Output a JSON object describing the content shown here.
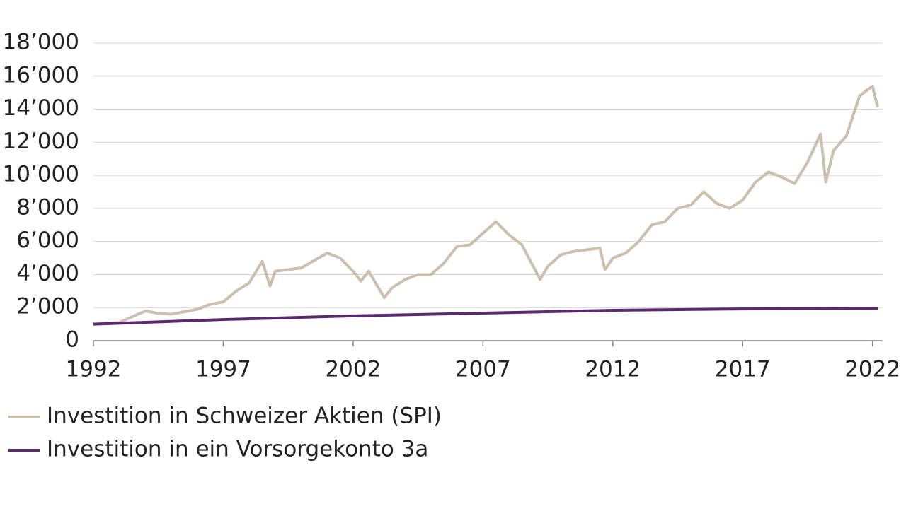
{
  "chart_data": {
    "type": "line",
    "xlim": [
      1992,
      2022.2
    ],
    "xticks": [
      1992,
      1997,
      2002,
      2007,
      2012,
      2017,
      2022
    ],
    "ylim": [
      0,
      18000
    ],
    "yticks": [
      0,
      {
        "value": 2000,
        "label": "2’000"
      },
      {
        "value": 4000,
        "label": "4’000"
      },
      {
        "value": 6000,
        "label": "6’000"
      },
      {
        "value": 8000,
        "label": "8’000"
      },
      {
        "value": 10000,
        "label": "10’000"
      },
      {
        "value": 12000,
        "label": "12’000"
      },
      {
        "value": 14000,
        "label": "14’000"
      },
      {
        "value": 16000,
        "label": "16’000"
      },
      {
        "value": 18000,
        "label": "18’000"
      }
    ],
    "grid": true,
    "legend": "bottom-left",
    "series": [
      {
        "name": "Investition in Schweizer Aktien (SPI)",
        "color": "#cdbfae",
        "x": [
          1992,
          1993,
          1994,
          1994.5,
          1995,
          1996,
          1996.5,
          1997,
          1997.5,
          1998,
          1998.5,
          1998.8,
          1999,
          2000,
          2001,
          2001.5,
          2002,
          2002.3,
          2002.6,
          2003.2,
          2003.5,
          2004,
          2004.5,
          2005,
          2005.5,
          2006,
          2006.5,
          2007.5,
          2008,
          2008.5,
          2009.2,
          2009.5,
          2010,
          2010.5,
          2011,
          2011.5,
          2011.7,
          2012,
          2012.5,
          2013,
          2013.5,
          2014,
          2014.5,
          2015,
          2015.5,
          2016,
          2016.5,
          2017,
          2017.5,
          2018,
          2018.5,
          2019,
          2019.5,
          2020,
          2020.2,
          2020.5,
          2021,
          2021.5,
          2022,
          2022.2
        ],
        "values": [
          1000,
          1100,
          1800,
          1650,
          1600,
          1900,
          2200,
          2350,
          3000,
          3500,
          4800,
          3300,
          4200,
          4400,
          5300,
          5000,
          4200,
          3600,
          4200,
          2600,
          3200,
          3700,
          4000,
          4000,
          4700,
          5700,
          5800,
          7200,
          6400,
          5800,
          3700,
          4500,
          5200,
          5400,
          5500,
          5600,
          4300,
          5000,
          5300,
          6000,
          7000,
          7200,
          8000,
          8200,
          9000,
          8300,
          8000,
          8500,
          9600,
          10200,
          9900,
          9500,
          10800,
          12500,
          9600,
          11500,
          12400,
          14800,
          15400,
          14100
        ]
      },
      {
        "name": "Investition in ein Vorsorgekonto 3a",
        "color": "#5b2a6e",
        "x": [
          1992,
          1997,
          2002,
          2007,
          2012,
          2017,
          2022.2
        ],
        "values": [
          1000,
          1280,
          1500,
          1670,
          1840,
          1920,
          1960
        ]
      }
    ]
  }
}
